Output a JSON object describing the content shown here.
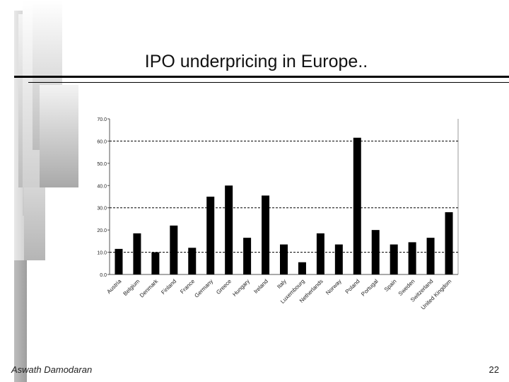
{
  "slide": {
    "title": "IPO underpricing in Europe..",
    "author": "Aswath Damodaran",
    "page_number": "22"
  },
  "chart_data": {
    "type": "bar",
    "title": "",
    "xlabel": "",
    "ylabel": "",
    "ylim": [
      0,
      70
    ],
    "yticks": [
      "0.0",
      "10.0",
      "20.0",
      "30.0",
      "40.0",
      "50.0",
      "60.0",
      "70.0"
    ],
    "grid_lines_at": [
      10,
      30,
      60
    ],
    "categories": [
      "Austria",
      "Belgium",
      "Denmark",
      "Finland",
      "France",
      "Germany",
      "Greece",
      "Hungary",
      "Ireland",
      "Italy",
      "Luxembourg",
      "Netherlands",
      "Norway",
      "Poland",
      "Portugal",
      "Spain",
      "Sweden",
      "Switzerland",
      "United Kingdom"
    ],
    "values": [
      11.5,
      18.5,
      10,
      22,
      12,
      35,
      40,
      16.5,
      35.5,
      13.5,
      5.5,
      18.5,
      13.5,
      61.5,
      20,
      13.5,
      14.5,
      16.5,
      28
    ],
    "bar_color": "#000000"
  }
}
